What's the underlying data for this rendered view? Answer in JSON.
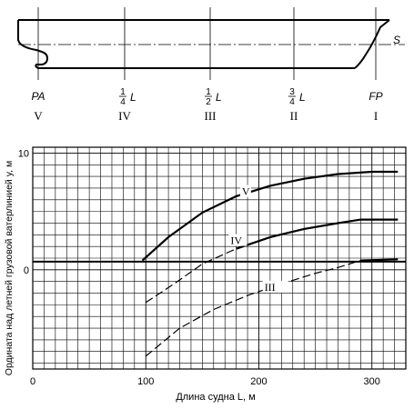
{
  "ship_diagram": {
    "station_labels": [
      "PA",
      "1/4 L",
      "1/2 L",
      "3/4 L",
      "FP"
    ],
    "roman_labels": [
      "V",
      "IV",
      "III",
      "II",
      "I"
    ],
    "waterline_label": "S",
    "fractions": [
      {
        "num": "1",
        "den": "4",
        "suffix": "L"
      },
      {
        "num": "1",
        "den": "2",
        "suffix": "L"
      },
      {
        "num": "3",
        "den": "4",
        "suffix": "L"
      }
    ]
  },
  "chart_data": {
    "type": "line",
    "xlabel": "Длина судна L, м",
    "ylabel": "Ордината над летней грузовой ватерлинией y, м",
    "xlim": [
      0,
      330
    ],
    "ylim": [
      -8.5,
      10.5
    ],
    "x_ticks": [
      0,
      100,
      200,
      300
    ],
    "y_ticks": [
      0,
      10
    ],
    "grid": true,
    "baseline_level": 0.7,
    "series": [
      {
        "name": "V",
        "style": "solid",
        "points": [
          [
            97,
            0.8
          ],
          [
            120,
            2.8
          ],
          [
            150,
            4.9
          ],
          [
            180,
            6.3
          ],
          [
            210,
            7.2
          ],
          [
            240,
            7.8
          ],
          [
            270,
            8.2
          ],
          [
            300,
            8.4
          ],
          [
            323,
            8.4
          ]
        ]
      },
      {
        "name": "IV",
        "style": "dashed-then-solid",
        "points": [
          [
            100,
            -2.8
          ],
          [
            125,
            -1.2
          ],
          [
            150,
            0.5
          ],
          [
            180,
            1.8
          ],
          [
            210,
            2.8
          ],
          [
            240,
            3.5
          ],
          [
            270,
            4.0
          ],
          [
            290,
            4.3
          ],
          [
            323,
            4.3
          ]
        ]
      },
      {
        "name": "III",
        "style": "dashed-then-solid",
        "points": [
          [
            100,
            -7.4
          ],
          [
            130,
            -5.0
          ],
          [
            160,
            -3.4
          ],
          [
            190,
            -2.2
          ],
          [
            220,
            -1.2
          ],
          [
            250,
            -0.3
          ],
          [
            270,
            0.2
          ],
          [
            290,
            0.8
          ],
          [
            323,
            0.9
          ]
        ]
      }
    ],
    "series_labels": [
      "V",
      "IV",
      "III"
    ]
  }
}
